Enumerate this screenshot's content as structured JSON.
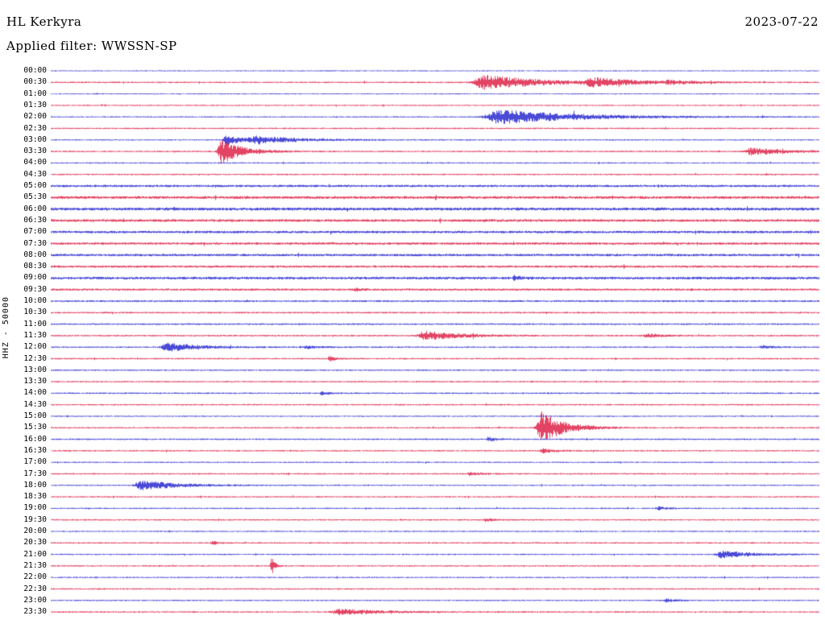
{
  "header": {
    "station": "HL Kerkyra",
    "date": "2023-07-22",
    "filter_label": "Applied filter: WWSSN-SP"
  },
  "y_axis_label": "HHZ - 50000",
  "colors": {
    "background": "#ffffff",
    "text": "#000000",
    "trace_blue": "#1c1ccd",
    "trace_red": "#dc143c"
  },
  "chart_data": {
    "type": "line",
    "title": "Helicorder seismogram HL Kerkyra 2023-07-22",
    "station": "HL Kerkyra",
    "channel": "HHZ",
    "scale": 50000,
    "filter": "WWSSN-SP",
    "date": "2023-07-22",
    "row_duration_minutes": 30,
    "events_format": "pos = fraction along 30-minute row, amp = peak amplitude (px), w = envelope width fraction",
    "rows": [
      {
        "time": "00:00",
        "color": "blue",
        "noise": 0.7,
        "events": []
      },
      {
        "time": "00:30",
        "color": "red",
        "noise": 0.9,
        "events": [
          {
            "pos": 0.565,
            "amp": 9,
            "w": 0.05
          },
          {
            "pos": 0.705,
            "amp": 5,
            "w": 0.035
          },
          {
            "pos": 0.802,
            "amp": 2.2,
            "w": 0.02
          }
        ]
      },
      {
        "time": "01:00",
        "color": "blue",
        "noise": 0.7,
        "events": []
      },
      {
        "time": "01:30",
        "color": "red",
        "noise": 0.8,
        "events": []
      },
      {
        "time": "02:00",
        "color": "blue",
        "noise": 0.8,
        "events": [
          {
            "pos": 0.585,
            "amp": 9,
            "w": 0.065
          }
        ]
      },
      {
        "time": "02:30",
        "color": "red",
        "noise": 0.9,
        "events": []
      },
      {
        "time": "03:00",
        "color": "blue",
        "noise": 0.8,
        "events": [
          {
            "pos": 0.228,
            "amp": 7,
            "w": 0.012
          },
          {
            "pos": 0.268,
            "amp": 4.5,
            "w": 0.04
          }
        ]
      },
      {
        "time": "03:30",
        "color": "red",
        "noise": 0.9,
        "events": [
          {
            "pos": 0.222,
            "amp": 15,
            "w": 0.018
          },
          {
            "pos": 0.912,
            "amp": 4.5,
            "w": 0.03
          }
        ]
      },
      {
        "time": "04:00",
        "color": "blue",
        "noise": 0.8,
        "events": []
      },
      {
        "time": "04:30",
        "color": "red",
        "noise": 0.9,
        "events": []
      },
      {
        "time": "05:00",
        "color": "blue",
        "noise": 1.4,
        "events": []
      },
      {
        "time": "05:30",
        "color": "red",
        "noise": 1.7,
        "events": []
      },
      {
        "time": "06:00",
        "color": "blue",
        "noise": 1.8,
        "events": []
      },
      {
        "time": "06:30",
        "color": "red",
        "noise": 1.6,
        "events": []
      },
      {
        "time": "07:00",
        "color": "blue",
        "noise": 1.5,
        "events": []
      },
      {
        "time": "07:30",
        "color": "red",
        "noise": 1.5,
        "events": []
      },
      {
        "time": "08:00",
        "color": "blue",
        "noise": 1.5,
        "events": []
      },
      {
        "time": "08:30",
        "color": "red",
        "noise": 1.4,
        "events": []
      },
      {
        "time": "09:00",
        "color": "blue",
        "noise": 1.6,
        "events": [
          {
            "pos": 0.603,
            "amp": 2.6,
            "w": 0.006
          }
        ]
      },
      {
        "time": "09:30",
        "color": "red",
        "noise": 1.3,
        "events": [
          {
            "pos": 0.395,
            "amp": 2.0,
            "w": 0.006
          }
        ]
      },
      {
        "time": "10:00",
        "color": "blue",
        "noise": 1.1,
        "events": []
      },
      {
        "time": "10:30",
        "color": "red",
        "noise": 1.0,
        "events": []
      },
      {
        "time": "11:00",
        "color": "blue",
        "noise": 1.0,
        "events": []
      },
      {
        "time": "11:30",
        "color": "red",
        "noise": 1.0,
        "events": [
          {
            "pos": 0.487,
            "amp": 6,
            "w": 0.028
          },
          {
            "pos": 0.775,
            "amp": 2.2,
            "w": 0.014
          }
        ]
      },
      {
        "time": "12:00",
        "color": "blue",
        "noise": 0.9,
        "events": [
          {
            "pos": 0.152,
            "amp": 5.5,
            "w": 0.028
          },
          {
            "pos": 0.332,
            "amp": 2.0,
            "w": 0.012
          },
          {
            "pos": 0.925,
            "amp": 1.8,
            "w": 0.01
          }
        ]
      },
      {
        "time": "12:30",
        "color": "red",
        "noise": 0.9,
        "events": [
          {
            "pos": 0.362,
            "amp": 3,
            "w": 0.006
          }
        ]
      },
      {
        "time": "13:00",
        "color": "blue",
        "noise": 0.9,
        "events": []
      },
      {
        "time": "13:30",
        "color": "red",
        "noise": 0.9,
        "events": []
      },
      {
        "time": "14:00",
        "color": "blue",
        "noise": 0.9,
        "events": [
          {
            "pos": 0.352,
            "amp": 1.8,
            "w": 0.008
          }
        ]
      },
      {
        "time": "14:30",
        "color": "red",
        "noise": 0.9,
        "events": []
      },
      {
        "time": "15:00",
        "color": "blue",
        "noise": 0.8,
        "events": []
      },
      {
        "time": "15:30",
        "color": "red",
        "noise": 0.9,
        "events": [
          {
            "pos": 0.638,
            "amp": 20,
            "w": 0.02
          }
        ]
      },
      {
        "time": "16:00",
        "color": "blue",
        "noise": 0.9,
        "events": [
          {
            "pos": 0.568,
            "amp": 3,
            "w": 0.006
          }
        ]
      },
      {
        "time": "16:30",
        "color": "red",
        "noise": 0.9,
        "events": [
          {
            "pos": 0.64,
            "amp": 2.5,
            "w": 0.012
          }
        ]
      },
      {
        "time": "17:00",
        "color": "blue",
        "noise": 0.8,
        "events": []
      },
      {
        "time": "17:30",
        "color": "red",
        "noise": 0.9,
        "events": [
          {
            "pos": 0.545,
            "amp": 2.0,
            "w": 0.01
          }
        ]
      },
      {
        "time": "18:00",
        "color": "blue",
        "noise": 0.8,
        "events": [
          {
            "pos": 0.118,
            "amp": 6,
            "w": 0.032
          }
        ]
      },
      {
        "time": "18:30",
        "color": "red",
        "noise": 0.9,
        "events": []
      },
      {
        "time": "19:00",
        "color": "blue",
        "noise": 0.8,
        "events": [
          {
            "pos": 0.79,
            "amp": 2.0,
            "w": 0.01
          }
        ]
      },
      {
        "time": "19:30",
        "color": "red",
        "noise": 0.9,
        "events": [
          {
            "pos": 0.565,
            "amp": 1.8,
            "w": 0.008
          }
        ]
      },
      {
        "time": "20:00",
        "color": "blue",
        "noise": 0.8,
        "events": []
      },
      {
        "time": "20:30",
        "color": "red",
        "noise": 0.9,
        "events": [
          {
            "pos": 0.21,
            "amp": 2.0,
            "w": 0.006
          }
        ]
      },
      {
        "time": "21:00",
        "color": "blue",
        "noise": 0.8,
        "events": [
          {
            "pos": 0.873,
            "amp": 4.5,
            "w": 0.025
          }
        ]
      },
      {
        "time": "21:30",
        "color": "red",
        "noise": 0.9,
        "events": [
          {
            "pos": 0.287,
            "amp": 11,
            "w": 0.003
          }
        ]
      },
      {
        "time": "22:00",
        "color": "blue",
        "noise": 0.8,
        "events": []
      },
      {
        "time": "22:30",
        "color": "red",
        "noise": 0.9,
        "events": []
      },
      {
        "time": "23:00",
        "color": "blue",
        "noise": 0.8,
        "events": [
          {
            "pos": 0.8,
            "amp": 2.0,
            "w": 0.008
          }
        ]
      },
      {
        "time": "23:30",
        "color": "red",
        "noise": 0.9,
        "events": [
          {
            "pos": 0.375,
            "amp": 3.5,
            "w": 0.035
          }
        ]
      }
    ]
  }
}
